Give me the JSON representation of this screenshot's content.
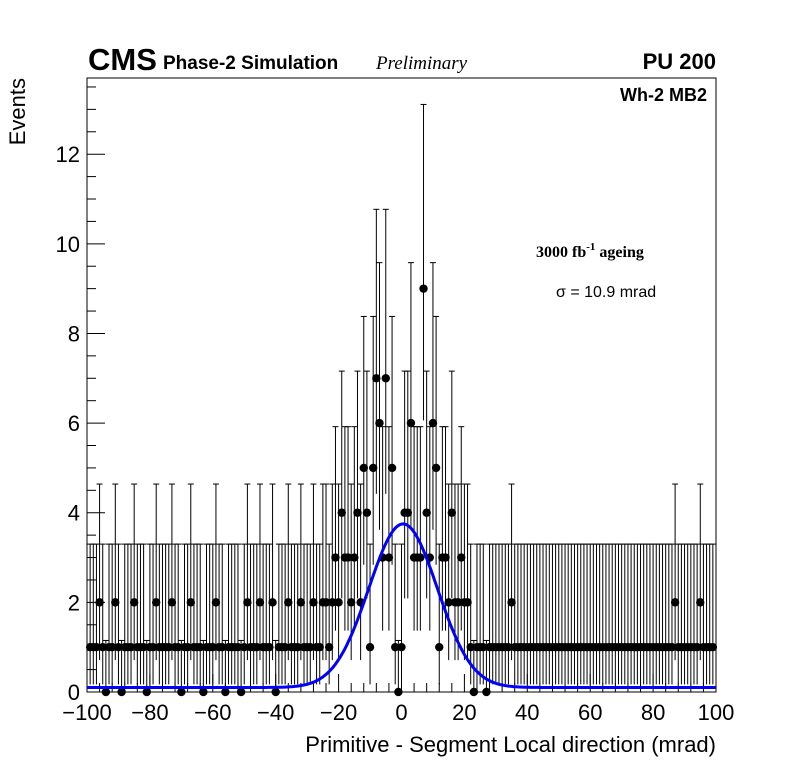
{
  "header": {
    "experiment": "CMS",
    "subtitle": "Phase-2 Simulation",
    "status": "Preliminary",
    "pileup": "PU 200",
    "region": "Wh-2 MB2"
  },
  "annotations": {
    "ageing_prefix": "3000 fb",
    "ageing_sup": "-1",
    "ageing_suffix": " ageing",
    "sigma": "σ = 10.9 mrad"
  },
  "chart_data": {
    "type": "scatter",
    "xlabel": "Primitive - Segment Local direction (mrad)",
    "ylabel": "Events",
    "xlim": [
      -100,
      100
    ],
    "ylim": [
      0,
      13.7
    ],
    "x_ticks": [
      -100,
      -80,
      -60,
      -40,
      -20,
      0,
      20,
      40,
      60,
      80,
      100
    ],
    "x_tick_labels": [
      "−100",
      "−80",
      "−60",
      "−40",
      "−20",
      "0",
      "20",
      "40",
      "60",
      "80",
      "100"
    ],
    "y_ticks": [
      0,
      2,
      4,
      6,
      8,
      10,
      12
    ],
    "y_tick_labels": [
      "0",
      "2",
      "4",
      "6",
      "8",
      "10",
      "12"
    ],
    "grid": false,
    "series": [
      {
        "kind": "points_with_poisson_errors",
        "color": "#000000",
        "x": [
          -99,
          -98,
          -97,
          -96,
          -95,
          -94,
          -93,
          -92,
          -91,
          -90,
          -89,
          -88,
          -87,
          -86,
          -85,
          -84,
          -83,
          -82,
          -81,
          -80,
          -79,
          -78,
          -77,
          -76,
          -75,
          -74,
          -73,
          -72,
          -71,
          -70,
          -69,
          -68,
          -67,
          -66,
          -65,
          -64,
          -63,
          -62,
          -61,
          -60,
          -59,
          -58,
          -57,
          -56,
          -55,
          -54,
          -53,
          -52,
          -51,
          -50,
          -49,
          -48,
          -47,
          -46,
          -45,
          -44,
          -43,
          -42,
          -41,
          -40,
          -39,
          -38,
          -37,
          -36,
          -35,
          -34,
          -33,
          -32,
          -31,
          -30,
          -29,
          -28,
          -27,
          -26,
          -25,
          -24,
          -23,
          -22,
          -21,
          -20,
          -19,
          -18,
          -17,
          -16,
          -15,
          -14,
          -13,
          -12,
          -11,
          -10,
          -9,
          -8,
          -7,
          -6,
          -5,
          -4,
          -3,
          -2,
          -1,
          0,
          1,
          2,
          3,
          4,
          5,
          6,
          7,
          8,
          9,
          10,
          11,
          12,
          13,
          14,
          15,
          16,
          17,
          18,
          19,
          20,
          21,
          22,
          23,
          24,
          25,
          26,
          27,
          28,
          29,
          30,
          31,
          32,
          33,
          34,
          35,
          36,
          37,
          38,
          39,
          40,
          41,
          42,
          43,
          44,
          45,
          46,
          47,
          48,
          49,
          50,
          51,
          52,
          53,
          54,
          55,
          56,
          57,
          58,
          59,
          60,
          61,
          62,
          63,
          64,
          65,
          66,
          67,
          68,
          69,
          70,
          71,
          72,
          73,
          74,
          75,
          76,
          77,
          78,
          79,
          80,
          81,
          82,
          83,
          84,
          85,
          86,
          87,
          88,
          89,
          90,
          91,
          92,
          93,
          94,
          95,
          96,
          97,
          98,
          99
        ],
        "y": [
          1,
          1,
          1,
          2,
          1,
          0,
          1,
          1,
          2,
          1,
          0,
          1,
          1,
          1,
          2,
          1,
          1,
          1,
          0,
          1,
          1,
          2,
          1,
          1,
          1,
          1,
          2,
          1,
          1,
          0,
          1,
          1,
          2,
          1,
          1,
          1,
          0,
          1,
          1,
          1,
          2,
          1,
          1,
          0,
          1,
          1,
          1,
          1,
          0,
          1,
          2,
          1,
          1,
          1,
          2,
          1,
          1,
          1,
          2,
          0,
          1,
          1,
          1,
          2,
          1,
          1,
          1,
          2,
          1,
          1,
          1,
          2,
          1,
          1,
          2,
          2,
          1,
          2,
          3,
          2,
          4,
          3,
          3,
          2,
          3,
          4,
          2,
          5,
          4,
          1,
          5,
          7,
          6,
          3,
          7,
          3,
          5,
          1,
          0,
          1,
          4,
          4,
          6,
          3,
          3,
          3,
          9,
          4,
          3,
          6,
          5,
          1,
          3,
          3,
          2,
          4,
          2,
          2,
          3,
          2,
          2,
          1,
          0,
          1,
          1,
          1,
          0,
          1,
          1,
          1,
          1,
          1,
          1,
          1,
          2,
          1,
          1,
          1,
          1,
          1,
          1,
          1,
          1,
          1,
          1,
          1,
          1,
          1,
          1,
          1,
          1,
          1,
          1,
          1,
          1,
          1,
          1,
          1,
          1,
          1,
          1,
          1,
          1,
          1,
          1,
          1,
          1,
          1,
          1,
          1,
          1,
          1,
          1,
          1,
          1,
          1,
          1,
          1,
          1,
          1,
          1,
          1,
          1,
          1,
          1,
          1,
          2,
          1,
          1,
          1,
          1,
          1,
          1,
          1,
          2,
          1,
          1,
          1,
          1
        ]
      },
      {
        "kind": "gaussian_fit",
        "name": "σ = 10.9 mrad",
        "color": "#0000ff",
        "mean": 0.5,
        "sigma": 10.9,
        "amplitude": 3.65,
        "baseline": 0.1
      }
    ]
  }
}
